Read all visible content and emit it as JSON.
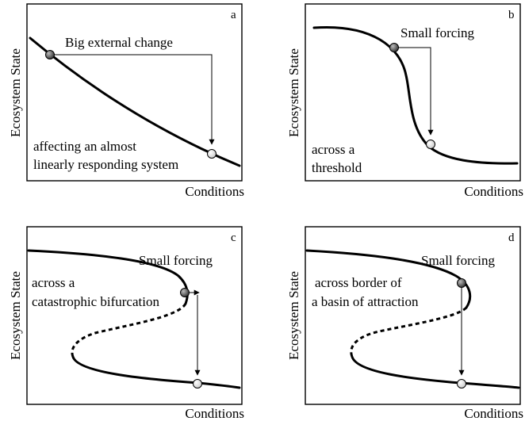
{
  "panels": {
    "a": {
      "letter": "a",
      "ylabel": "Ecosystem State",
      "xlabel": "Conditions",
      "annotation": "Big external change",
      "caption_line1": "affecting an almost",
      "caption_line2": "linearly responding system"
    },
    "b": {
      "letter": "b",
      "ylabel": "Ecosystem State",
      "xlabel": "Conditions",
      "annotation": "Small forcing",
      "caption_line1": "across a",
      "caption_line2": "threshold"
    },
    "c": {
      "letter": "c",
      "ylabel": "Ecosystem State",
      "xlabel": "Conditions",
      "annotation": "Small forcing",
      "caption_line1": "across a",
      "caption_line2": "catastrophic bifurcation"
    },
    "d": {
      "letter": "d",
      "ylabel": "Ecosystem State",
      "xlabel": "Conditions",
      "annotation": "Small forcing",
      "caption_line1": "across border of",
      "caption_line2": "a basin of attraction"
    }
  },
  "colors": {
    "start_marker": "#555555",
    "end_marker": "#f2f2f2",
    "line": "#000000"
  }
}
